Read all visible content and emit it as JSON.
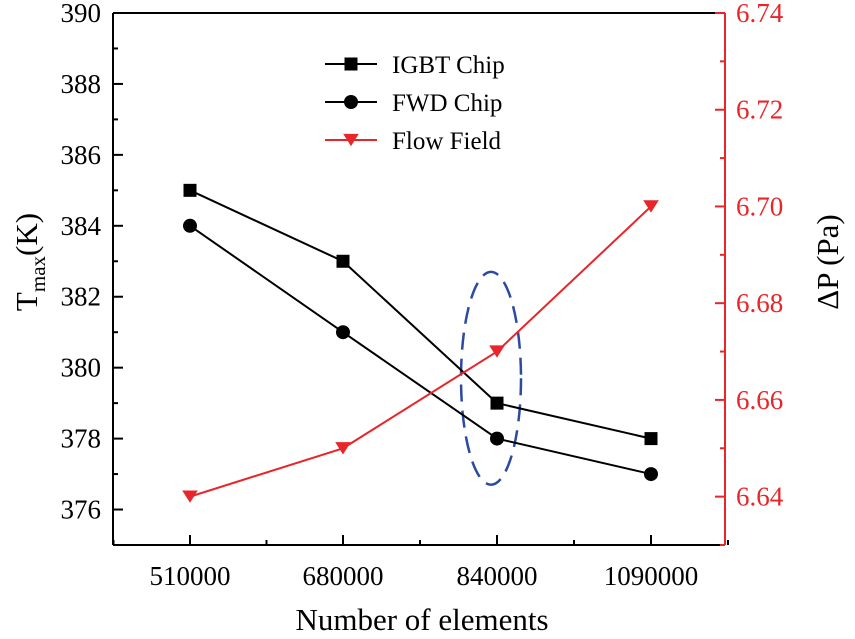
{
  "chart_data": {
    "type": "line",
    "xlabel": "Number of elements",
    "categories": [
      "510000",
      "680000",
      "840000",
      "1090000"
    ],
    "left_axis": {
      "label_main": "T",
      "label_sub": "max",
      "label_unit": "(K)",
      "ylim": [
        375,
        390
      ],
      "ticks": [
        376,
        378,
        380,
        382,
        384,
        386,
        388,
        390
      ],
      "tick_labels": [
        "376",
        "378",
        "380",
        "382",
        "384",
        "386",
        "388",
        "390"
      ]
    },
    "right_axis": {
      "label": "ΔP (Pa)",
      "color": "#e8262a",
      "ylim": [
        6.63,
        6.74
      ],
      "ticks": [
        6.64,
        6.66,
        6.68,
        6.7,
        6.72,
        6.74
      ],
      "tick_labels": [
        "6.64",
        "6.66",
        "6.68",
        "6.70",
        "6.72",
        "6.74"
      ]
    },
    "series": [
      {
        "name": "IGBT Chip",
        "axis": "left",
        "marker": "square",
        "color": "#000000",
        "values": [
          385,
          383,
          379,
          378
        ]
      },
      {
        "name": "FWD Chip",
        "axis": "left",
        "marker": "circle",
        "color": "#000000",
        "values": [
          384,
          381,
          378,
          377
        ]
      },
      {
        "name": "Flow Field",
        "axis": "right",
        "marker": "triangle-down",
        "color": "#e8262a",
        "values": [
          6.64,
          6.65,
          6.67,
          6.7
        ]
      }
    ],
    "legend_position": "top-center",
    "annotation": {
      "type": "dashed-ellipse",
      "color": "#2b4aa0",
      "category": "840000",
      "y_center": 379.7,
      "y_half_range": 3
    }
  }
}
